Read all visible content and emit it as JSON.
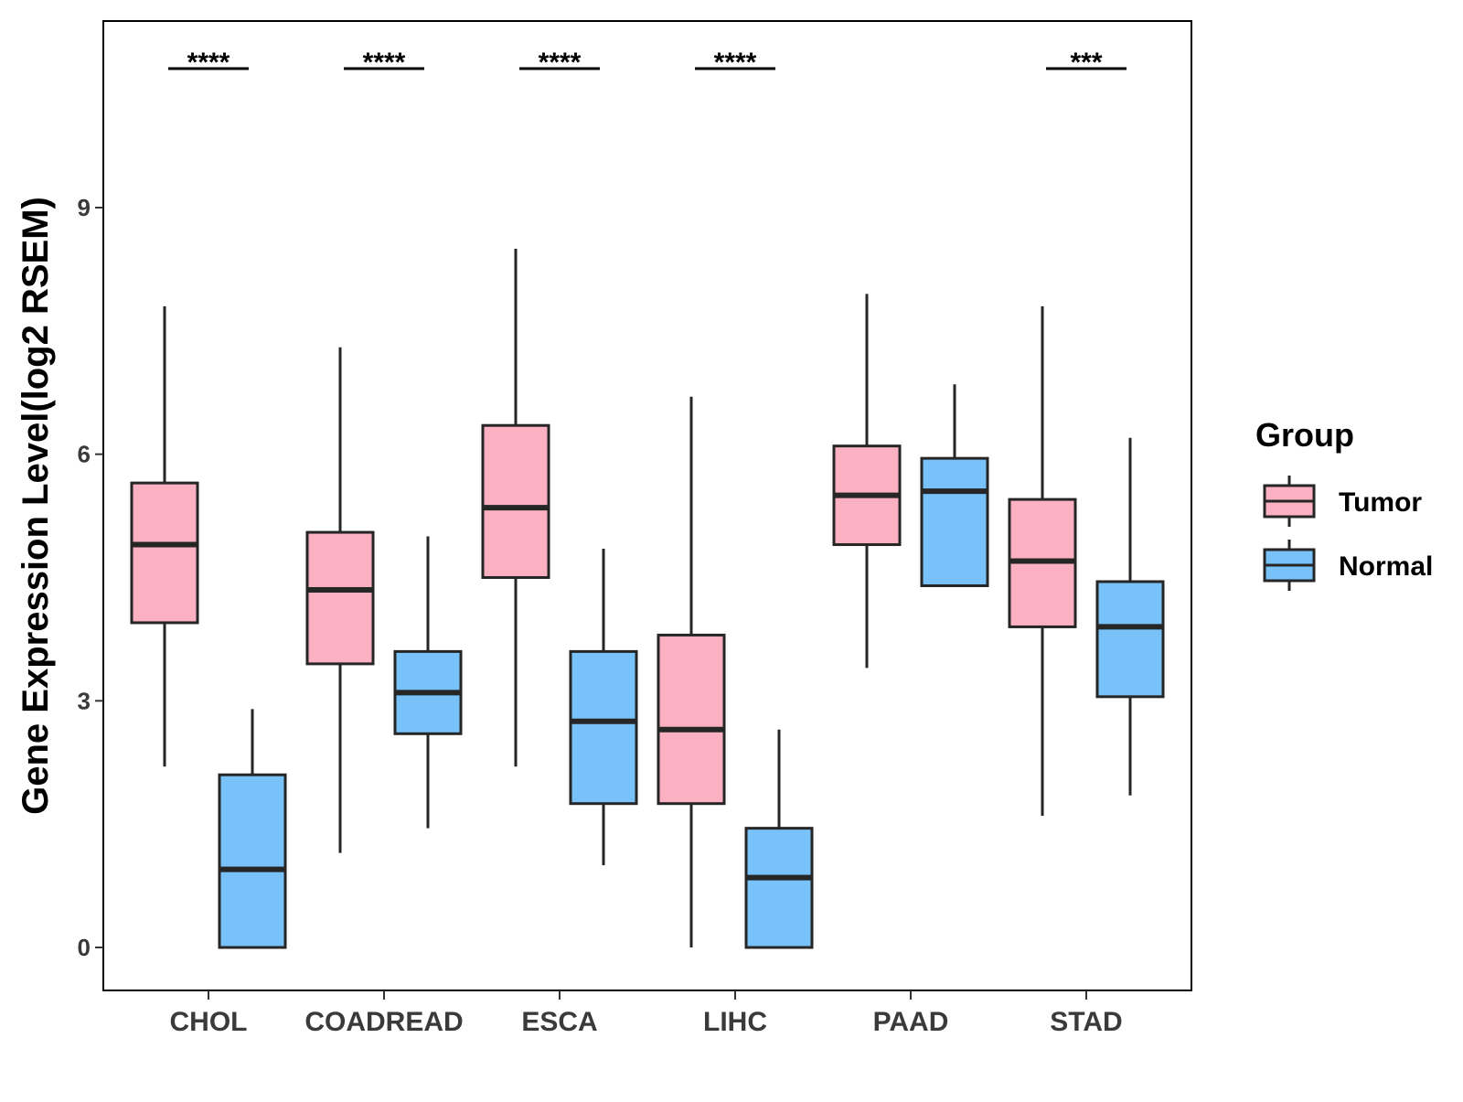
{
  "chart_data": {
    "type": "boxplot",
    "title": "",
    "xlabel": "",
    "ylabel": "Gene Expression Level(log2 RSEM)",
    "ylim": [
      -0.5,
      11.3
    ],
    "yticks": [
      0,
      3,
      6,
      9
    ],
    "grid": false,
    "categories": [
      "CHOL",
      "COADREAD",
      "ESCA",
      "LIHC",
      "PAAD",
      "STAD"
    ],
    "legend": {
      "title": "Group",
      "position": "right",
      "entries": [
        "Tumor",
        "Normal"
      ]
    },
    "series": [
      {
        "name": "Tumor",
        "color": "#FBB1C1",
        "boxes": [
          {
            "min": 2.2,
            "q1": 3.95,
            "median": 4.9,
            "q3": 5.65,
            "max": 7.8
          },
          {
            "min": 1.15,
            "q1": 3.45,
            "median": 4.35,
            "q3": 5.05,
            "max": 7.3
          },
          {
            "min": 2.2,
            "q1": 4.5,
            "median": 5.35,
            "q3": 6.35,
            "max": 8.5
          },
          {
            "min": 0.0,
            "q1": 1.75,
            "median": 2.65,
            "q3": 3.8,
            "max": 6.7
          },
          {
            "min": 3.4,
            "q1": 4.9,
            "median": 5.5,
            "q3": 6.1,
            "max": 7.95
          },
          {
            "min": 1.6,
            "q1": 3.9,
            "median": 4.7,
            "q3": 5.45,
            "max": 7.8
          }
        ]
      },
      {
        "name": "Normal",
        "color": "#78C1F9",
        "boxes": [
          {
            "min": 0.0,
            "q1": 0.0,
            "median": 0.95,
            "q3": 2.1,
            "max": 2.9
          },
          {
            "min": 1.45,
            "q1": 2.6,
            "median": 3.1,
            "q3": 3.6,
            "max": 5.0
          },
          {
            "min": 1.0,
            "q1": 1.75,
            "median": 2.75,
            "q3": 3.6,
            "max": 4.85
          },
          {
            "min": 0.0,
            "q1": 0.0,
            "median": 0.85,
            "q3": 1.45,
            "max": 2.65
          },
          {
            "min": 4.4,
            "q1": 4.4,
            "median": 5.55,
            "q3": 5.95,
            "max": 6.85
          },
          {
            "min": 1.85,
            "q1": 3.05,
            "median": 3.9,
            "q3": 4.45,
            "max": 6.2
          }
        ]
      }
    ],
    "significance": [
      "****",
      "****",
      "****",
      "****",
      "",
      "***"
    ]
  }
}
